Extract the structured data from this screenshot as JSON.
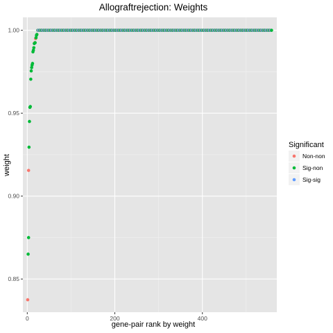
{
  "chart_data": {
    "type": "scatter",
    "title": "Allograftrejection: Weights",
    "xlabel": "gene-pair rank by weight",
    "ylabel": "weight",
    "xlim": [
      -10,
      570
    ],
    "ylim": [
      0.83,
      1.0078
    ],
    "x_ticks": [
      0,
      200,
      400
    ],
    "x_tick_labels": [
      "0",
      "200",
      "400"
    ],
    "y_ticks": [
      0.85,
      0.9,
      0.95,
      1.0
    ],
    "y_tick_labels": [
      "0.85",
      "0.90",
      "0.95",
      "1.00"
    ],
    "grid": true,
    "background": "#e5e5e5",
    "legend": {
      "title": "Significant",
      "position": "right",
      "entries": [
        {
          "label": "Non-non",
          "color": "#F8766D"
        },
        {
          "label": "Sig-non",
          "color": "#00BA38"
        },
        {
          "label": "Sig-sig",
          "color": "#619CFF"
        }
      ]
    },
    "series": [
      {
        "name": "Non-non",
        "color": "#F8766D",
        "points": [
          [
            1,
            0.8375
          ],
          [
            3,
            0.9155
          ],
          [
            17,
            0.9925
          ],
          [
            19,
            0.995
          ]
        ]
      },
      {
        "name": "Sig-non",
        "color": "#00BA38",
        "points": [
          [
            2,
            0.865
          ],
          [
            3,
            0.875
          ],
          [
            4,
            0.9295
          ],
          [
            5,
            0.945
          ],
          [
            6,
            0.9535
          ],
          [
            7,
            0.954
          ],
          [
            8,
            0.9705
          ],
          [
            9,
            0.9755
          ],
          [
            10,
            0.9775
          ],
          [
            11,
            0.979
          ],
          [
            12,
            0.98
          ],
          [
            13,
            0.987
          ],
          [
            14,
            0.988
          ],
          [
            15,
            0.9895
          ],
          [
            16,
            0.992
          ],
          [
            18,
            0.9925
          ],
          [
            20,
            0.9955
          ],
          [
            21,
            0.997
          ],
          [
            22,
            0.9975
          ]
        ]
      }
    ],
    "plateau": {
      "y": 1.0,
      "x_start": 24,
      "x_end": 558,
      "pattern": [
        "Sig-non",
        "Sig-sig",
        "Non-non",
        "Sig-sig",
        "Sig-non",
        "Sig-sig",
        "Sig-non",
        "Non-non",
        "Sig-sig",
        "Sig-non"
      ]
    }
  }
}
